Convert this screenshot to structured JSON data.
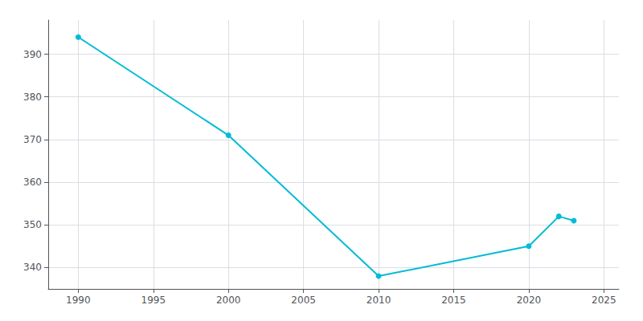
{
  "chart_data": {
    "type": "line",
    "x": [
      1990,
      2000,
      2010,
      2020,
      2022,
      2023
    ],
    "values": [
      394,
      371,
      338,
      345,
      352,
      351
    ],
    "color": "#00bcd4",
    "marker": "circle",
    "xlim": [
      1988,
      2026
    ],
    "ylim": [
      335,
      398
    ],
    "xticks": [
      1990,
      1995,
      2000,
      2005,
      2010,
      2015,
      2020,
      2025
    ],
    "yticks": [
      340,
      350,
      360,
      370,
      380,
      390
    ],
    "grid": true
  }
}
